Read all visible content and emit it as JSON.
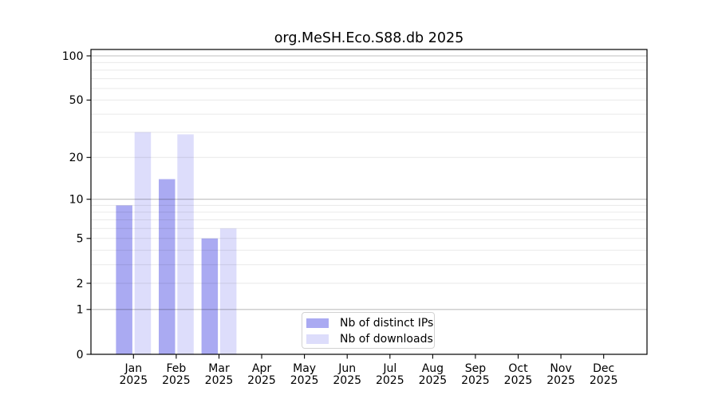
{
  "chart_data": {
    "type": "bar",
    "title": "org.MeSH.Eco.S88.db 2025",
    "year_label": "2025",
    "categories": [
      "Jan",
      "Feb",
      "Mar",
      "Apr",
      "May",
      "Jun",
      "Jul",
      "Aug",
      "Sep",
      "Oct",
      "Nov",
      "Dec"
    ],
    "series": [
      {
        "name": "Nb of distinct IPs",
        "color": "#AAAAF2",
        "values": [
          9,
          14,
          5,
          0,
          0,
          0,
          0,
          0,
          0,
          0,
          0,
          0
        ]
      },
      {
        "name": "Nb of downloads",
        "color": "#DDDDFB",
        "values": [
          30,
          29,
          6,
          0,
          0,
          0,
          0,
          0,
          0,
          0,
          0,
          0
        ]
      }
    ],
    "y_axis": {
      "scale": "log1p",
      "ticks": [
        0,
        1,
        2,
        5,
        10,
        20,
        50,
        100
      ],
      "major_gridlines": [
        1,
        10,
        100
      ],
      "minor_gridlines": [
        2,
        3,
        4,
        5,
        6,
        7,
        8,
        9,
        20,
        30,
        40,
        50,
        60,
        70,
        80,
        90
      ],
      "ylim": [
        0,
        110
      ]
    },
    "xlabel": "",
    "ylabel": "",
    "grid": true,
    "legend_position": "inside-bottom-center"
  }
}
